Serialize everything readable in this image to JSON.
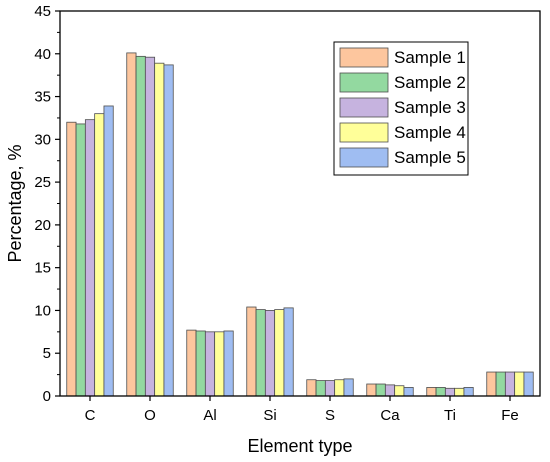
{
  "chart_data": {
    "type": "bar",
    "title": "",
    "xlabel": "Element type",
    "ylabel": "Percentage, %",
    "categories": [
      "C",
      "O",
      "Al",
      "Si",
      "S",
      "Ca",
      "Ti",
      "Fe"
    ],
    "ylim": [
      0,
      45
    ],
    "yticks": [
      "0",
      "5",
      "10",
      "15",
      "20",
      "25",
      "30",
      "35",
      "40",
      "45"
    ],
    "grid": false,
    "legend_position": "top-right",
    "series": [
      {
        "name": "Sample 1",
        "color": "#FDC69E",
        "values": [
          32.0,
          40.1,
          7.7,
          10.4,
          1.9,
          1.4,
          1.0,
          2.8
        ]
      },
      {
        "name": "Sample 2",
        "color": "#93D9A0",
        "values": [
          31.8,
          39.7,
          7.6,
          10.1,
          1.8,
          1.4,
          1.0,
          2.8
        ]
      },
      {
        "name": "Sample 3",
        "color": "#C6B3DF",
        "values": [
          32.3,
          39.6,
          7.5,
          10.0,
          1.8,
          1.3,
          0.9,
          2.8
        ]
      },
      {
        "name": "Sample 4",
        "color": "#FFFF99",
        "values": [
          33.0,
          38.9,
          7.5,
          10.1,
          1.9,
          1.2,
          0.9,
          2.8
        ]
      },
      {
        "name": "Sample 5",
        "color": "#9FBDF2",
        "values": [
          33.9,
          38.7,
          7.6,
          10.3,
          2.0,
          1.0,
          1.0,
          2.8
        ]
      }
    ]
  }
}
